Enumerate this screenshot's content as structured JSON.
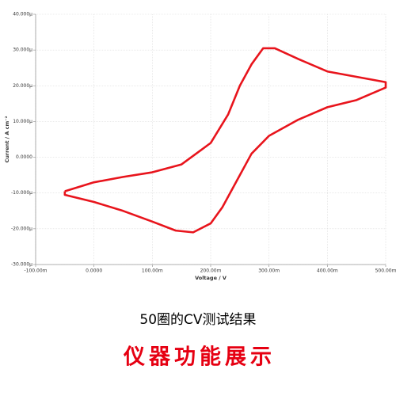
{
  "chart_data": {
    "type": "line",
    "xlabel": "Voltage / V",
    "ylabel": "Current / A cm⁻²",
    "x": [
      -0.05,
      0,
      0.05,
      0.1,
      0.15,
      0.2,
      0.23,
      0.25,
      0.27,
      0.29,
      0.31,
      0.35,
      0.4,
      0.45,
      0.5,
      0.5,
      0.45,
      0.4,
      0.35,
      0.3,
      0.27,
      0.25,
      0.22,
      0.2,
      0.17,
      0.14,
      0.1,
      0.05,
      0,
      -0.05,
      -0.05
    ],
    "series": [
      {
        "name": "CV",
        "color": "#e8141c",
        "values": [
          -9.5e-06,
          -7e-06,
          -5.5e-06,
          -4.2e-06,
          -2e-06,
          4e-06,
          1.2e-05,
          2e-05,
          2.6e-05,
          3.05e-05,
          3.05e-05,
          2.75e-05,
          2.4e-05,
          2.25e-05,
          2.1e-05,
          1.95e-05,
          1.6e-05,
          1.4e-05,
          1.05e-05,
          6e-06,
          1e-06,
          -5e-06,
          -1.4e-05,
          -1.85e-05,
          -2.1e-05,
          -2.05e-05,
          -1.8e-05,
          -1.5e-05,
          -1.25e-05,
          -1.05e-05,
          -9.5e-06
        ]
      }
    ],
    "xlim": [
      -0.1,
      0.5
    ],
    "xticks": [
      {
        "value": -0.1,
        "label": "-100.00m"
      },
      {
        "value": 0,
        "label": "0.0000"
      },
      {
        "value": 0.1,
        "label": "100.00m"
      },
      {
        "value": 0.2,
        "label": "200.00m"
      },
      {
        "value": 0.3,
        "label": "300.00m"
      },
      {
        "value": 0.4,
        "label": "400.00m"
      },
      {
        "value": 0.5,
        "label": "500.00m"
      }
    ],
    "ylim": [
      -3e-05,
      4e-05
    ],
    "yticks": [
      {
        "value": -3e-05,
        "label": "-30.000µ"
      },
      {
        "value": -2e-05,
        "label": "-20.000µ"
      },
      {
        "value": -1e-05,
        "label": "-10.000µ"
      },
      {
        "value": 0,
        "label": "0.0000"
      },
      {
        "value": 1e-05,
        "label": "10.000µ"
      },
      {
        "value": 2e-05,
        "label": "20.000µ"
      },
      {
        "value": 3e-05,
        "label": "30.000µ"
      },
      {
        "value": 4e-05,
        "label": "40.000µ"
      }
    ],
    "grid": true
  },
  "caption": "50圈的CV测试结果",
  "banner": "仪器功能展示"
}
